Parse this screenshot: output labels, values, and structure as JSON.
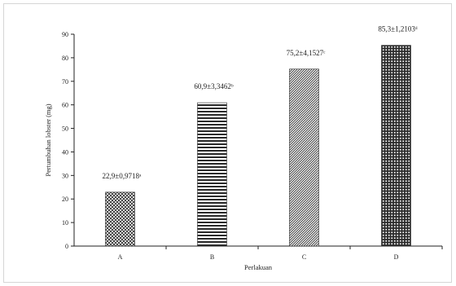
{
  "chart_data": {
    "type": "bar",
    "categories": [
      "A",
      "B",
      "C",
      "D"
    ],
    "values": [
      22.9,
      60.9,
      75.2,
      85.3
    ],
    "data_labels": [
      "22,9±0,9718ᵃ",
      "60,9±3,3462ᵇ",
      "75,2±4,1527ᶜ",
      "85,3±1,2103ᵈ"
    ],
    "patterns": [
      "crosshatch-diagonal",
      "horizontal-lines",
      "diagonal-lines",
      "grid-squares"
    ],
    "title": "",
    "xlabel": "Perlakuan",
    "ylabel": "Pertumbuhan lobster (mg)",
    "ylim": [
      0,
      90
    ],
    "yticks": [
      0,
      10,
      20,
      30,
      40,
      50,
      60,
      70,
      80,
      90
    ],
    "grid": false,
    "legend": "none",
    "colors": {
      "bar": "#2b2b2b",
      "axis": "#222222",
      "frame": "#d6d6d6"
    }
  }
}
